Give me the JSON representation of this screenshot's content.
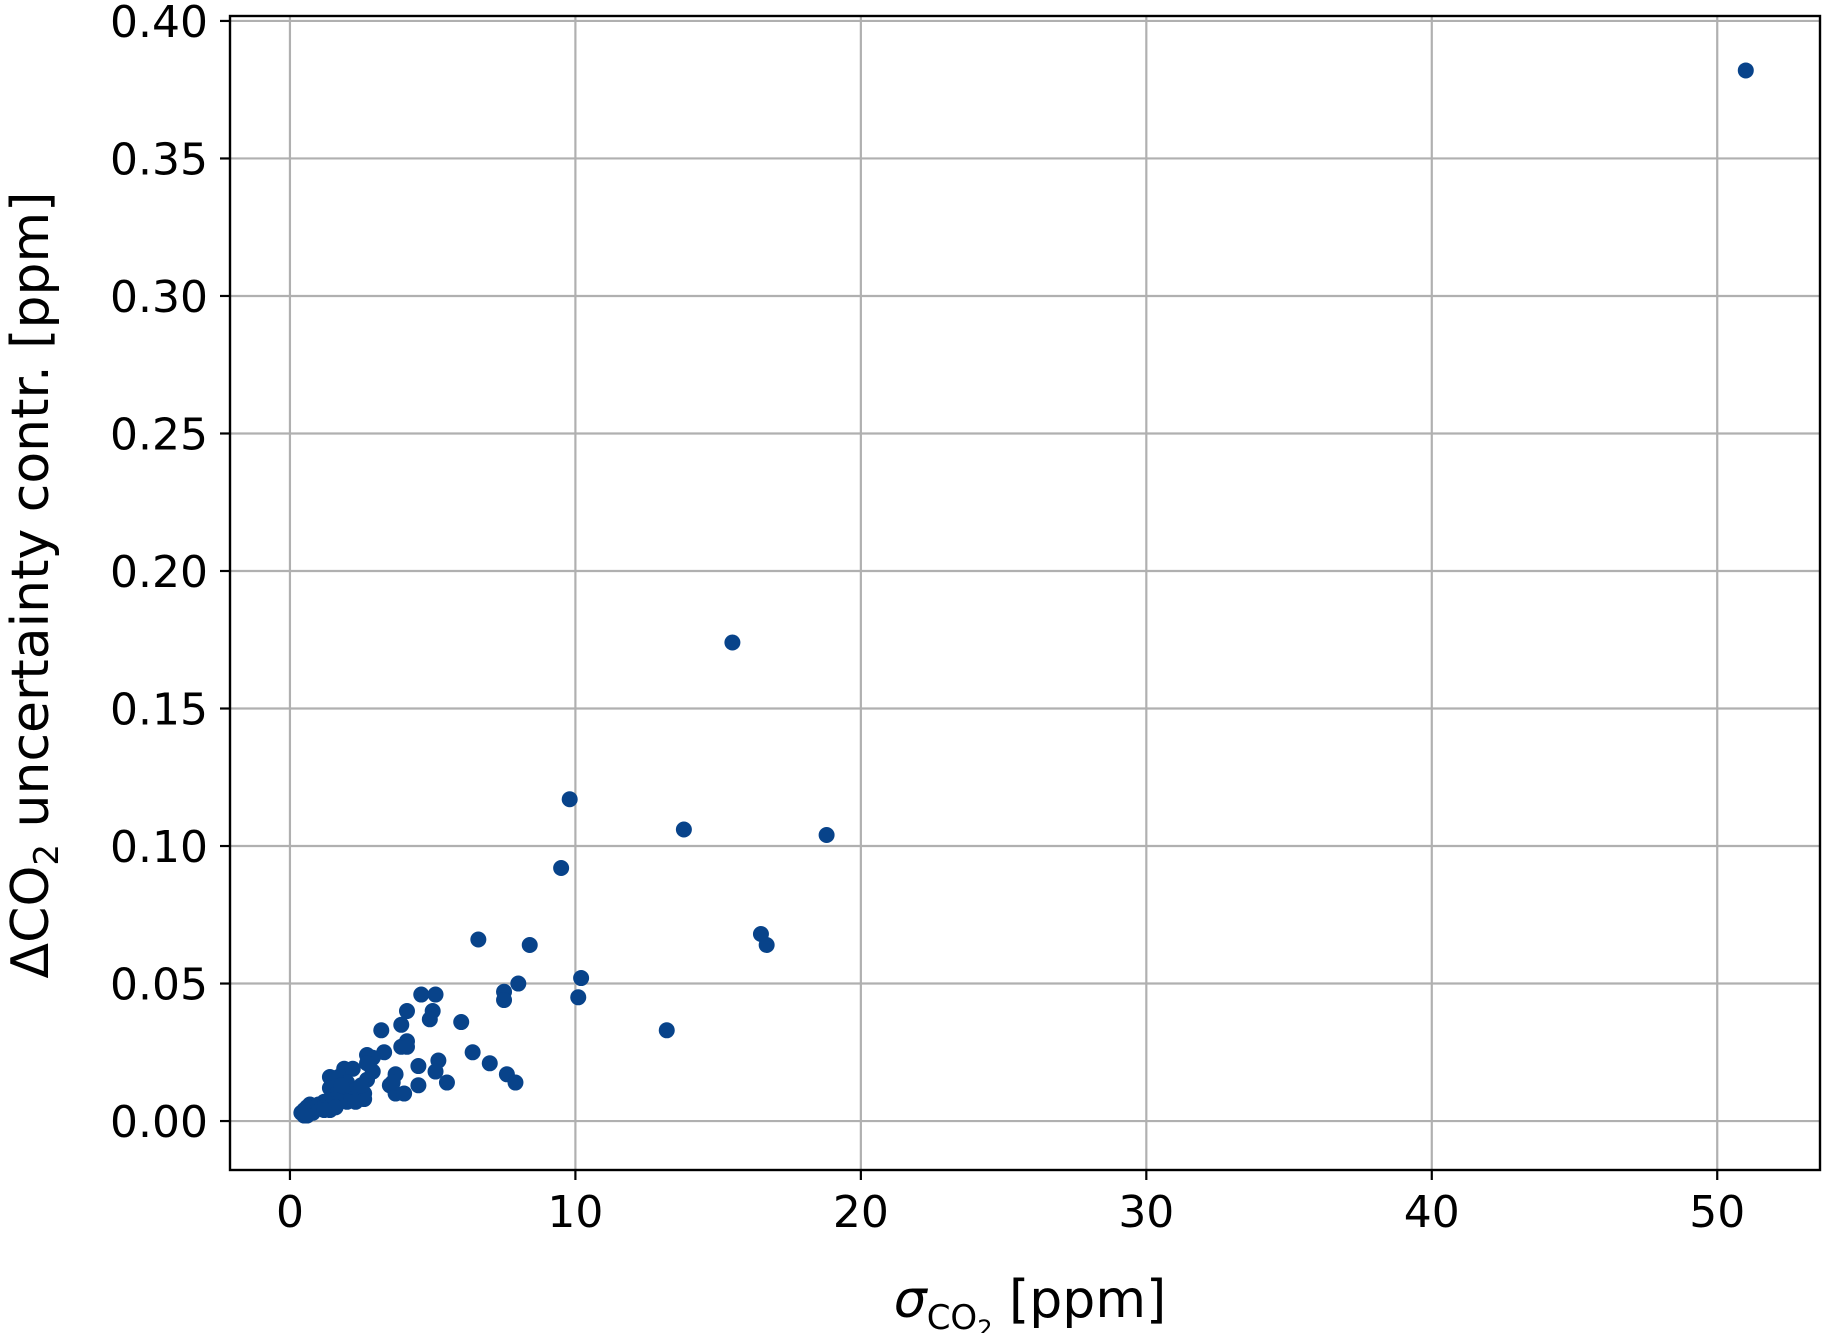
{
  "chart_data": {
    "type": "scatter",
    "title": "",
    "xlabel_main": "σ",
    "xlabel_sub": "CO",
    "xlabel_subsub": "2",
    "xlabel_unit": " [ppm]",
    "ylabel_pre": "ΔCO",
    "ylabel_sub": "2",
    "ylabel_post": " uncertainty contr. [ppm]",
    "xlim": [
      -2.1,
      53.6
    ],
    "ylim": [
      -0.0178,
      0.4018
    ],
    "xticks": [
      0,
      10,
      20,
      30,
      40,
      50
    ],
    "xtick_labels": [
      "0",
      "10",
      "20",
      "30",
      "40",
      "50"
    ],
    "yticks": [
      0.0,
      0.05,
      0.1,
      0.15,
      0.2,
      0.25,
      0.3,
      0.35,
      0.4
    ],
    "ytick_labels": [
      "0.00",
      "0.05",
      "0.10",
      "0.15",
      "0.20",
      "0.25",
      "0.30",
      "0.35",
      "0.40"
    ],
    "grid": true,
    "marker_color": "#08438a",
    "series": [
      {
        "points": [
          [
            51.0,
            0.382
          ],
          [
            15.5,
            0.174
          ],
          [
            9.8,
            0.117
          ],
          [
            13.8,
            0.106
          ],
          [
            18.8,
            0.104
          ],
          [
            9.5,
            0.092
          ],
          [
            6.6,
            0.066
          ],
          [
            16.5,
            0.068
          ],
          [
            16.7,
            0.064
          ],
          [
            8.4,
            0.064
          ],
          [
            10.2,
            0.052
          ],
          [
            10.1,
            0.045
          ],
          [
            8.0,
            0.05
          ],
          [
            7.5,
            0.047
          ],
          [
            7.5,
            0.044
          ],
          [
            13.2,
            0.033
          ],
          [
            5.1,
            0.046
          ],
          [
            4.6,
            0.046
          ],
          [
            5.0,
            0.04
          ],
          [
            4.1,
            0.04
          ],
          [
            4.9,
            0.037
          ],
          [
            6.0,
            0.036
          ],
          [
            3.9,
            0.035
          ],
          [
            3.2,
            0.033
          ],
          [
            4.1,
            0.029
          ],
          [
            3.9,
            0.027
          ],
          [
            3.3,
            0.025
          ],
          [
            4.1,
            0.027
          ],
          [
            6.4,
            0.025
          ],
          [
            2.7,
            0.024
          ],
          [
            2.9,
            0.023
          ],
          [
            2.7,
            0.021
          ],
          [
            5.2,
            0.022
          ],
          [
            7.0,
            0.021
          ],
          [
            4.5,
            0.02
          ],
          [
            5.1,
            0.018
          ],
          [
            7.6,
            0.017
          ],
          [
            3.7,
            0.017
          ],
          [
            5.5,
            0.014
          ],
          [
            7.9,
            0.014
          ],
          [
            4.5,
            0.013
          ],
          [
            3.5,
            0.013
          ],
          [
            2.7,
            0.015
          ],
          [
            1.9,
            0.019
          ],
          [
            2.2,
            0.019
          ],
          [
            1.4,
            0.016
          ],
          [
            1.7,
            0.016
          ],
          [
            2.0,
            0.014
          ],
          [
            3.7,
            0.01
          ],
          [
            4.0,
            0.01
          ],
          [
            2.6,
            0.01
          ],
          [
            1.4,
            0.012
          ],
          [
            1.7,
            0.011
          ],
          [
            2.2,
            0.011
          ],
          [
            2.6,
            0.008
          ],
          [
            2.1,
            0.008
          ],
          [
            1.8,
            0.009
          ],
          [
            2.0,
            0.007
          ],
          [
            2.3,
            0.007
          ],
          [
            1.6,
            0.008
          ],
          [
            1.2,
            0.007
          ],
          [
            1.5,
            0.006
          ],
          [
            1.4,
            0.004
          ],
          [
            1.0,
            0.006
          ],
          [
            1.1,
            0.005
          ],
          [
            0.9,
            0.005
          ],
          [
            0.7,
            0.006
          ],
          [
            0.6,
            0.005
          ],
          [
            0.8,
            0.003
          ],
          [
            0.5,
            0.004
          ],
          [
            0.6,
            0.002
          ],
          [
            0.4,
            0.003
          ],
          [
            0.5,
            0.002
          ],
          [
            1.6,
            0.005
          ],
          [
            1.2,
            0.004
          ],
          [
            2.5,
            0.013
          ],
          [
            1.8,
            0.013
          ],
          [
            3.6,
            0.014
          ],
          [
            2.9,
            0.018
          ]
        ]
      }
    ]
  }
}
